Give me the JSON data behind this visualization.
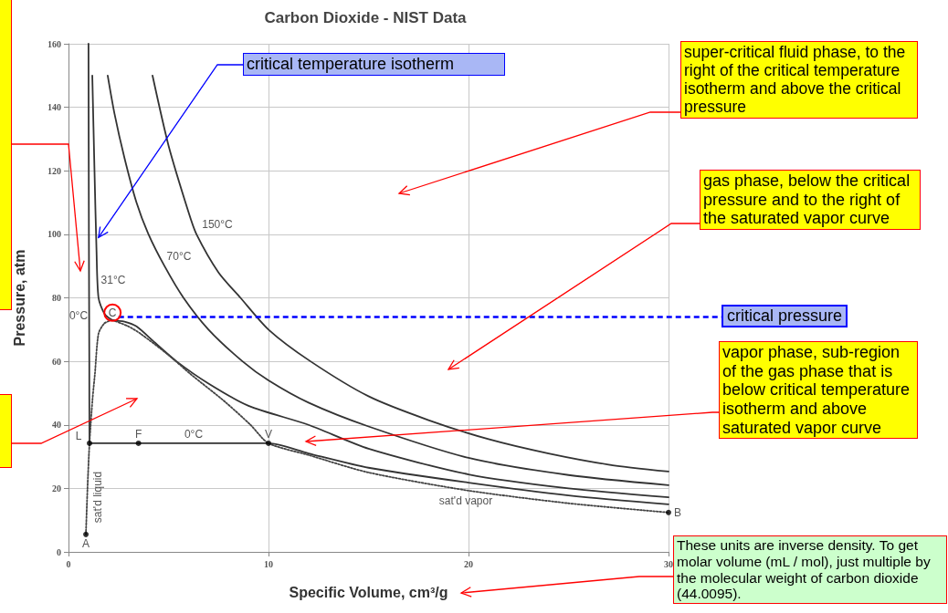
{
  "chart_data": {
    "type": "line",
    "title": "Carbon Dioxide - NIST Data",
    "xlabel": "Specific Volume, cm³/g",
    "ylabel": "Pressure, atm",
    "xlim": [
      0,
      30
    ],
    "xticks": [
      0,
      10,
      20,
      30
    ],
    "ylim": [
      0,
      160
    ],
    "yticks": [
      0,
      20,
      40,
      60,
      80,
      100,
      120,
      140,
      160
    ],
    "grid": true,
    "marker": "none",
    "line_style": "solid",
    "series": [
      {
        "color": "#333333",
        "x": [
          4.2,
          5,
          6,
          6.4,
          7.5,
          8.6,
          10,
          12.1,
          15,
          18,
          21,
          24,
          27,
          30
        ],
        "values": [
          150,
          128,
          107,
          100,
          88,
          80,
          70,
          60,
          49,
          41.5,
          35.5,
          31,
          27.5,
          25.3
        ]
      },
      {
        "color": "#333333",
        "x": [
          1.96,
          2.3,
          2.8,
          3.4,
          4,
          4.8,
          5.75,
          7,
          8.7,
          10,
          12,
          15,
          20,
          25,
          30
        ],
        "values": [
          150,
          138,
          124,
          110,
          100,
          90,
          80,
          70,
          60,
          54,
          47,
          39.5,
          29.6,
          24.2,
          21
        ]
      },
      {
        "color": "#333333",
        "x": [
          1.19,
          1.3,
          1.4,
          1.5,
          1.8,
          2.2,
          2.8,
          3.4,
          4.3,
          5.4,
          7,
          9,
          12,
          15,
          20,
          25,
          30
        ],
        "values": [
          150,
          120,
          95,
          80,
          75,
          73,
          72.5,
          71,
          66,
          60,
          53,
          46,
          40,
          32.5,
          24.4,
          20,
          17.2
        ]
      },
      {
        "color": "#333333",
        "x": [
          1.0,
          1.02,
          1.04,
          1.05,
          3.5,
          10,
          12,
          15,
          20,
          25,
          30
        ],
        "values": [
          160,
          100,
          60,
          34.2,
          34.2,
          34.2,
          31,
          26.5,
          21.8,
          17.8,
          15
        ]
      },
      {
        "color": "#444444",
        "line_style": "dotted",
        "x": [
          0.87,
          0.95,
          1.05,
          1.2,
          1.32,
          1.5,
          1.8,
          2.2
        ],
        "values": [
          5.5,
          20,
          34.2,
          48,
          56,
          68.7,
          72,
          73
        ]
      },
      {
        "color": "#444444",
        "line_style": "dotted",
        "x": [
          2.2,
          3,
          3.6,
          5,
          6.1,
          7.8,
          9.1,
          10,
          12,
          15,
          20,
          25,
          30
        ],
        "values": [
          73,
          71,
          68.7,
          62,
          56,
          47.4,
          40,
          34.2,
          30.5,
          25,
          19.3,
          15.3,
          12.4
        ]
      },
      {
        "type": "scatter",
        "marker": "circle",
        "color": "#000000",
        "x": [
          0.87,
          1.05,
          3.5,
          10,
          30
        ],
        "values": [
          5.5,
          34.2,
          34.2,
          34.2,
          12.4
        ]
      }
    ],
    "ref_lines": [
      {
        "axis": "y",
        "value": 74,
        "label": "critical pressure",
        "color": "#0000ff",
        "line_style": "dashed"
      }
    ],
    "annotations": [
      {
        "text": "critical temperature isotherm",
        "x": 1.5,
        "y": 99
      },
      "super-critical fluid phase, to the right of the critical temperature isotherm and above the critical pressure",
      "gas phase, below the critical pressure and to the right of the saturated vapor curve",
      "vapor phase, sub-region of the gas phase that is below critical temperature isotherm and above saturated vapor curve",
      "These units are inverse density. To get molar volume (mL / mol), just multiple by the molecular weight of carbon dioxide (44.0095).",
      {
        "text": "C",
        "x": 2.2,
        "y": 73
      },
      {
        "text": "A",
        "x": 0.87,
        "y": 5.5
      },
      {
        "text": "L",
        "x": 1.05,
        "y": 34.2
      },
      {
        "text": "F",
        "x": 3.5,
        "y": 34.2
      },
      {
        "text": "V",
        "x": 10,
        "y": 34.2
      },
      {
        "text": "B",
        "x": 30,
        "y": 12.4
      },
      "0°C",
      "31°C",
      "70°C",
      "150°C",
      "0°C",
      "sat'd vapor",
      "sat'd liquid"
    ]
  }
}
